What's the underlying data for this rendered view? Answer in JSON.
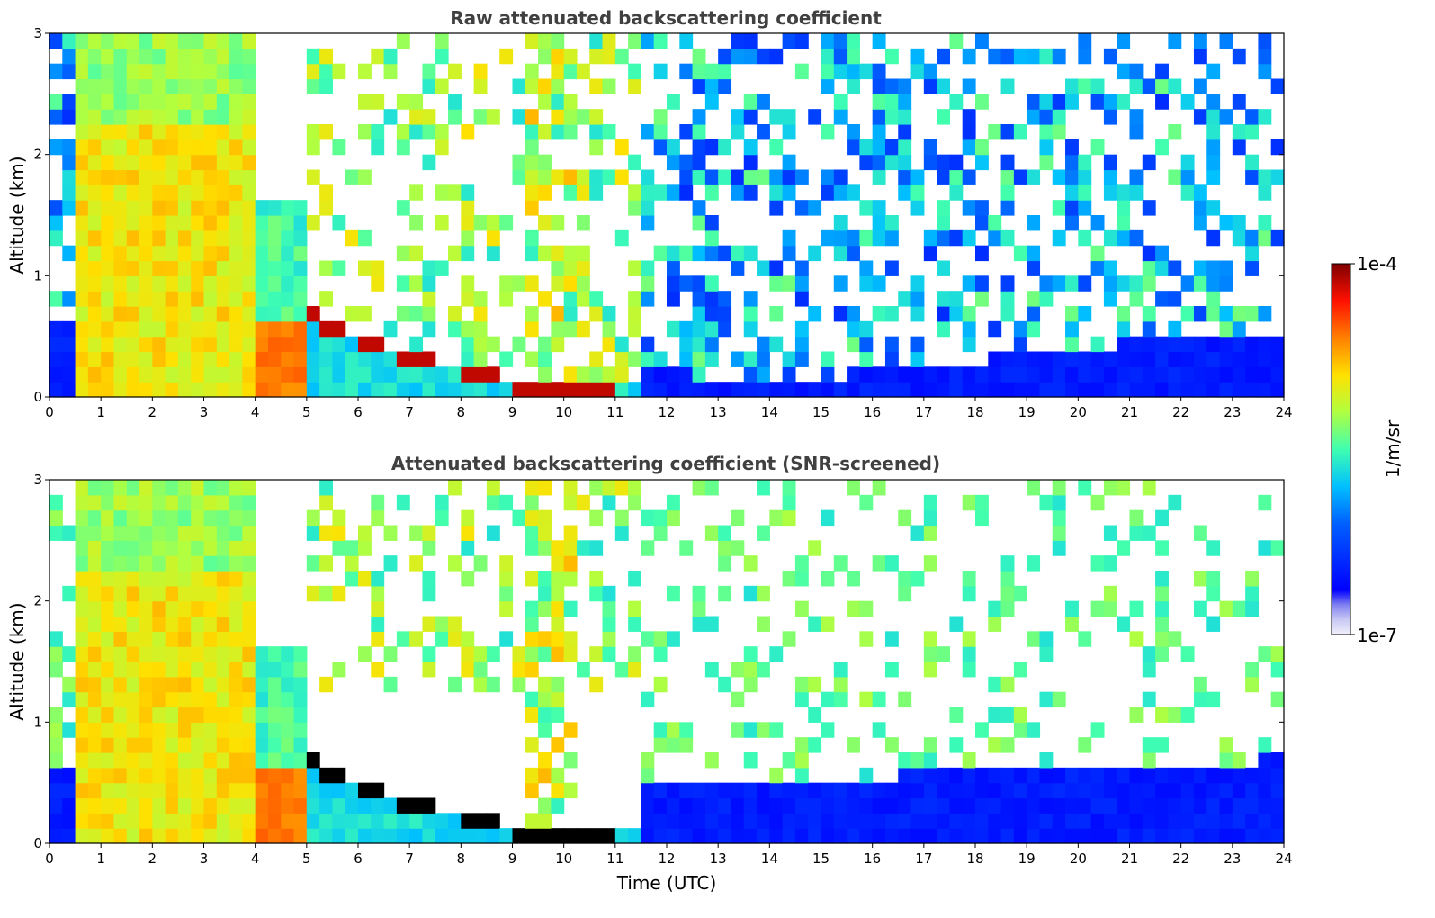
{
  "chart_data": [
    {
      "type": "heatmap",
      "title": "Raw attenuated backscattering coefficient",
      "xlabel": "",
      "ylabel": "Altitude (km)",
      "xlim": [
        0,
        24
      ],
      "ylim": [
        0,
        3
      ],
      "xticks": [
        "0",
        "1",
        "2",
        "3",
        "4",
        "5",
        "6",
        "7",
        "8",
        "9",
        "10",
        "11",
        "12",
        "13",
        "14",
        "15",
        "16",
        "17",
        "18",
        "19",
        "20",
        "21",
        "22",
        "23",
        "24"
      ],
      "yticks": [
        "0",
        "1",
        "2",
        "3"
      ],
      "features": {
        "cloud_columns_hours": [
          [
            0.6,
            4.0
          ],
          [
            4.0,
            5.0
          ]
        ],
        "boundary_layer_top_km": [
          [
            4.0,
            0.68
          ],
          [
            5.0,
            0.68
          ],
          [
            6.0,
            0.45
          ],
          [
            7.0,
            0.3
          ],
          [
            8.0,
            0.22
          ],
          [
            9.0,
            0.1
          ],
          [
            10.0,
            0.08
          ],
          [
            11.0,
            0.1
          ],
          [
            11.5,
            0.12
          ]
        ],
        "aerosol_layer_top_km": [
          [
            12,
            0.2
          ],
          [
            14,
            0.15
          ],
          [
            16,
            0.2
          ],
          [
            18,
            0.3
          ],
          [
            20,
            0.4
          ],
          [
            22,
            0.5
          ],
          [
            24,
            0.55
          ]
        ]
      }
    },
    {
      "type": "heatmap",
      "title": "Attenuated backscattering coefficient (SNR-screened)",
      "xlabel": "Time (UTC)",
      "ylabel": "Altitude (km)",
      "xlim": [
        0,
        24
      ],
      "ylim": [
        0,
        3
      ],
      "xticks": [
        "0",
        "1",
        "2",
        "3",
        "4",
        "5",
        "6",
        "7",
        "8",
        "9",
        "10",
        "11",
        "12",
        "13",
        "14",
        "15",
        "16",
        "17",
        "18",
        "19",
        "20",
        "21",
        "22",
        "23",
        "24"
      ],
      "yticks": [
        "0",
        "1",
        "2",
        "3"
      ],
      "features": {
        "cloud_columns_hours": [
          [
            0.6,
            4.0
          ],
          [
            4.0,
            5.0
          ]
        ],
        "boundary_layer_top_km": [
          [
            4.0,
            0.68
          ],
          [
            5.0,
            0.68
          ],
          [
            6.0,
            0.45
          ],
          [
            7.0,
            0.3
          ],
          [
            8.0,
            0.22
          ],
          [
            9.0,
            0.1
          ],
          [
            10.0,
            0.08
          ],
          [
            11.0,
            0.1
          ],
          [
            11.5,
            0.12
          ]
        ],
        "aerosol_layer_top_km": [
          [
            12,
            0.55
          ],
          [
            14,
            0.5
          ],
          [
            16,
            0.55
          ],
          [
            18,
            0.6
          ],
          [
            20,
            0.65
          ],
          [
            22,
            0.65
          ],
          [
            24,
            0.7
          ]
        ]
      }
    }
  ],
  "colorbar": {
    "label": "1/m/sr",
    "max_label": "1e-4",
    "min_label": "1e-7",
    "colormap": "jet",
    "scale": "log",
    "range": [
      1e-07,
      0.0001
    ]
  },
  "colors": {
    "title": "#404040",
    "low": "#e8e8f8",
    "mid": "#0000ff",
    "high": "#800000"
  }
}
